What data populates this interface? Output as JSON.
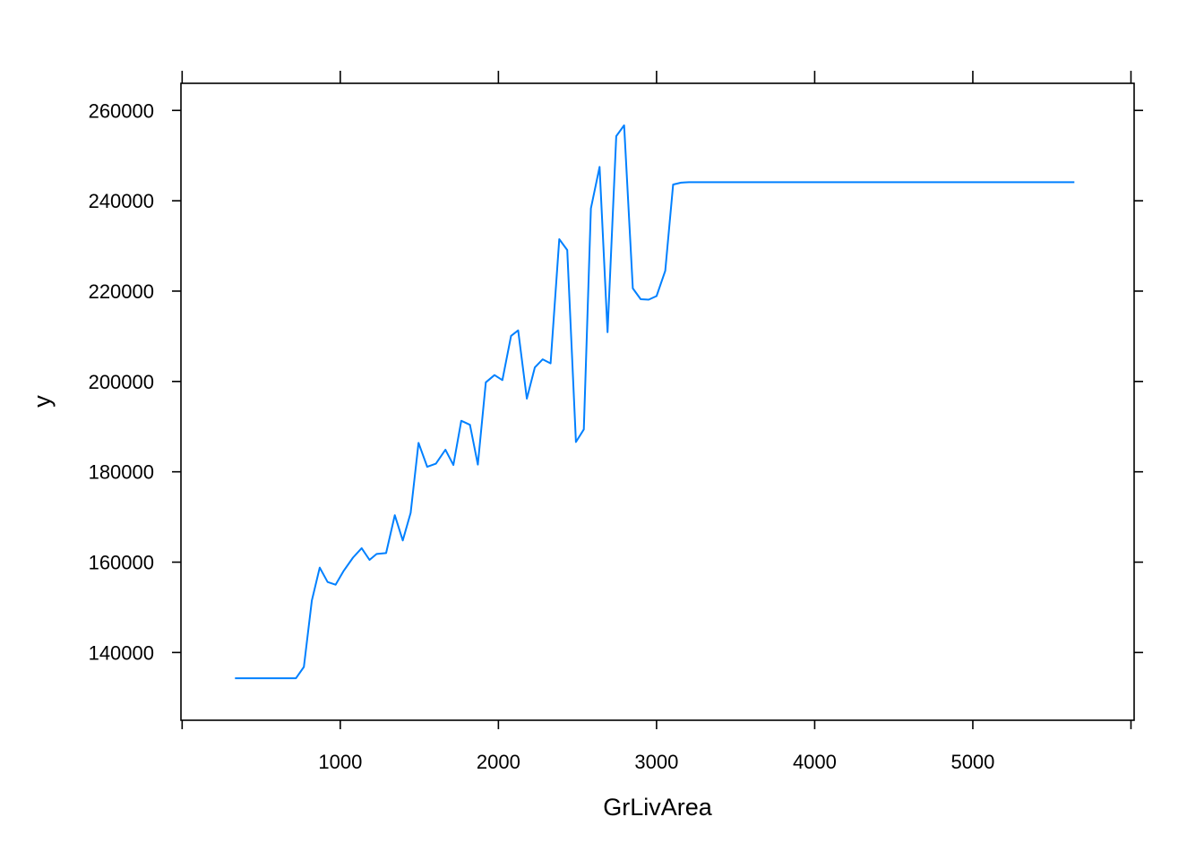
{
  "chart_data": {
    "type": "line",
    "title": "",
    "xlabel": "GrLivArea",
    "ylabel": "y",
    "xlim": [
      -7.5,
      6020
    ],
    "ylim": [
      125000,
      266000
    ],
    "xticks": [
      1000,
      2000,
      3000,
      4000,
      5000
    ],
    "xtick_labels": [
      "1000",
      "2000",
      "3000",
      "4000",
      "5000"
    ],
    "xticks_outer": [
      0,
      1000,
      2000,
      3000,
      4000,
      5000,
      6000
    ],
    "yticks": [
      140000,
      160000,
      180000,
      200000,
      220000,
      240000,
      260000
    ],
    "ytick_labels": [
      "140000",
      "160000",
      "180000",
      "200000",
      "220000",
      "240000",
      "260000"
    ],
    "grid": false,
    "line_color": "#0080ff",
    "series": [
      {
        "x": [
          334,
          380,
          430,
          480,
          530,
          580,
          630,
          680,
          720,
          770,
          820,
          870,
          920,
          970,
          1020,
          1080,
          1135,
          1185,
          1230,
          1290,
          1345,
          1395,
          1445,
          1495,
          1550,
          1605,
          1665,
          1715,
          1765,
          1820,
          1870,
          1920,
          1975,
          2025,
          2080,
          2125,
          2180,
          2230,
          2280,
          2330,
          2385,
          2435,
          2490,
          2540,
          2585,
          2640,
          2690,
          2745,
          2795,
          2850,
          2900,
          2950,
          3000,
          3055,
          3105,
          3155,
          3205,
          3260,
          3400,
          4000,
          4500,
          5000,
          5642
        ],
        "y": [
          134300,
          134300,
          134300,
          134300,
          134300,
          134300,
          134300,
          134300,
          134300,
          136800,
          151500,
          158800,
          155600,
          155000,
          158000,
          161000,
          163100,
          160500,
          161800,
          162000,
          170400,
          164800,
          170900,
          186400,
          181100,
          181800,
          184900,
          181500,
          191300,
          190400,
          181600,
          199800,
          201400,
          200300,
          210100,
          211300,
          196200,
          203100,
          204900,
          204000,
          231500,
          229100,
          186600,
          189400,
          238300,
          247500,
          210900,
          254300,
          256700,
          220600,
          218200,
          218100,
          218900,
          224500,
          243600,
          244000,
          244100,
          244100,
          244100,
          244100,
          244100,
          244100,
          244100
        ]
      }
    ]
  }
}
